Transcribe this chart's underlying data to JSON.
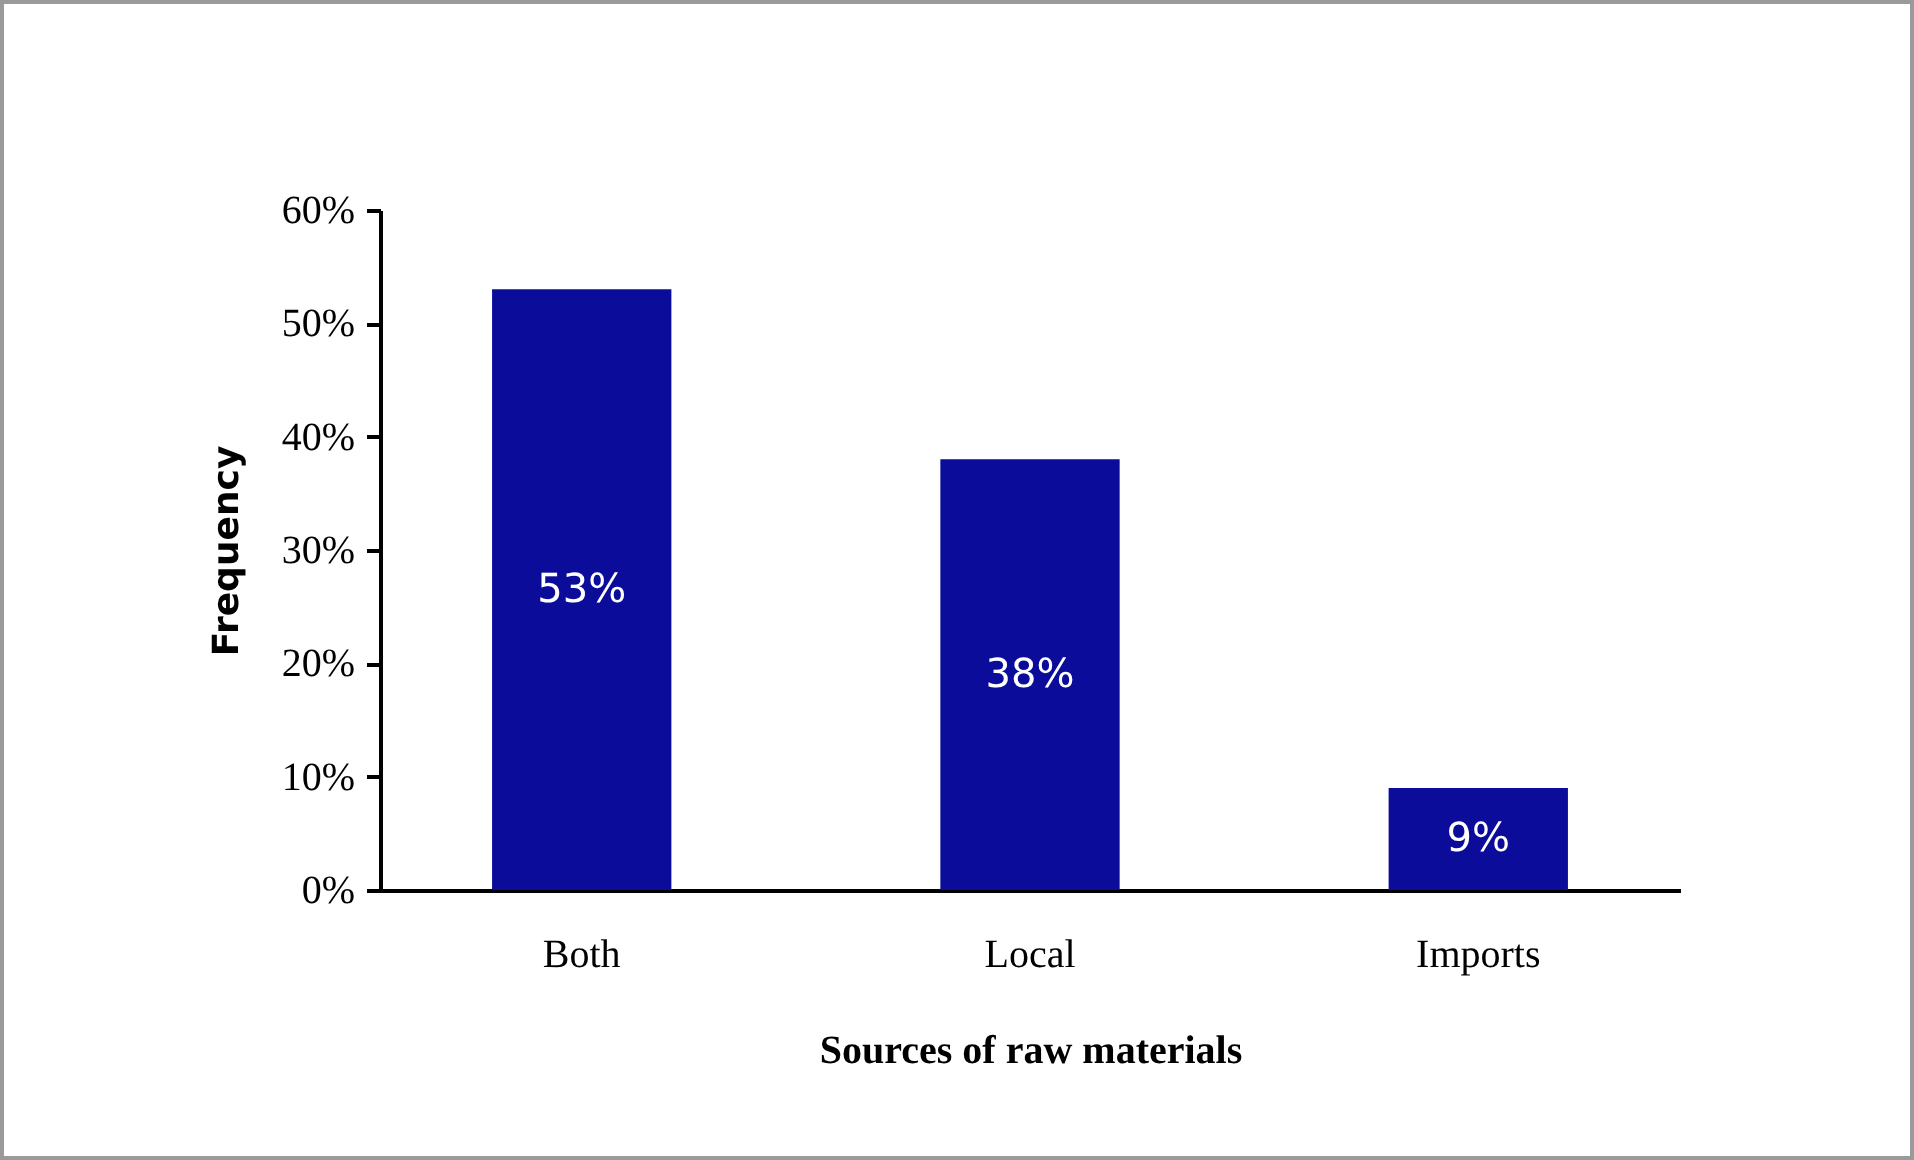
{
  "chart_data": {
    "type": "bar",
    "xlabel": "Sources of raw materials",
    "ylabel": "Frequency",
    "categories": [
      "Both",
      "Local",
      "Imports"
    ],
    "values": [
      53,
      38,
      9
    ],
    "color": "#0c0c9a",
    "value_labels": [
      "53%",
      "38%",
      "9%"
    ],
    "ylim": [
      0,
      60
    ],
    "yticks": [
      {
        "value": 0,
        "label": "0%"
      },
      {
        "value": 10,
        "label": "10%"
      },
      {
        "value": 20,
        "label": "20%"
      },
      {
        "value": 30,
        "label": "30%"
      },
      {
        "value": 40,
        "label": "40%"
      },
      {
        "value": 50,
        "label": "50%"
      },
      {
        "value": 60,
        "label": "60%"
      }
    ],
    "grid": false
  }
}
